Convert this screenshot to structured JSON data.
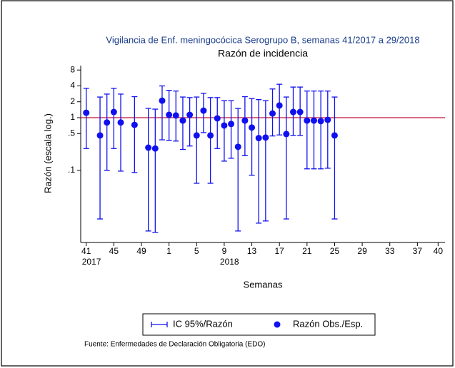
{
  "chart_data": {
    "type": "errorbar",
    "title": "Vigilancia de Enf. meningocócica Serogrupo B, semanas 41/2017 a 29/2018",
    "subtitle": "Razón de incidencia",
    "y_label": "Razón (escala log.)",
    "x_label": "Semanas",
    "note": "Fuente: Enfermedades de Declaración Obligatoria (EDO)",
    "y_scale": "log",
    "legend_position": "bottom",
    "x": [
      41,
      43,
      44,
      45,
      46,
      48,
      50,
      51,
      52,
      53,
      54,
      55,
      56,
      57,
      58,
      59,
      60,
      61,
      62,
      63,
      64,
      65,
      66,
      67,
      68,
      69,
      70,
      71,
      72,
      73,
      74,
      75,
      76,
      77
    ],
    "series": [
      {
        "name": "Razón Obs./Esp.",
        "color": "#1010f0",
        "values": [
          1.24,
          0.46,
          0.81,
          1.28,
          0.81,
          0.73,
          0.27,
          0.26,
          2.1,
          1.13,
          1.1,
          0.88,
          1.13,
          0.46,
          1.36,
          0.46,
          0.97,
          0.71,
          0.76,
          0.28,
          0.88,
          0.65,
          0.41,
          0.42,
          1.2,
          1.7,
          0.49,
          1.28,
          1.28,
          0.88,
          0.88,
          0.86,
          0.91,
          0.46
        ]
      }
    ],
    "ci": {
      "name": "IC 95%/Razón",
      "color": "#1010f0",
      "lower": [
        0.26,
        0.012,
        0.1,
        0.26,
        0.097,
        0.091,
        0.0071,
        0.0067,
        0.38,
        0.37,
        0.36,
        0.25,
        0.29,
        0.057,
        0.52,
        0.057,
        0.26,
        0.15,
        0.17,
        0.0071,
        0.19,
        0.081,
        0.01,
        0.011,
        0.45,
        0.47,
        0.012,
        0.46,
        0.46,
        0.107,
        0.107,
        0.107,
        0.11,
        0.012
      ],
      "upper": [
        3.6,
        2.46,
        2.8,
        3.6,
        2.8,
        2.5,
        1.5,
        1.45,
        4,
        3.3,
        3.2,
        2.46,
        2.4,
        2.46,
        2.9,
        2.4,
        2.4,
        2.1,
        2.1,
        1.5,
        2.5,
        2.3,
        2.2,
        2.1,
        3.5,
        4.3,
        2.46,
        3.8,
        3.8,
        3.2,
        3.2,
        3.2,
        3.2,
        2.46
      ]
    },
    "refline": {
      "value": 1,
      "color": "#c0143c"
    },
    "xlim": [
      40.2,
      93.0
    ],
    "xticks": [
      41,
      45,
      49,
      {
        "value": 53,
        "label": "1"
      },
      {
        "value": 57,
        "label": "5"
      },
      {
        "value": 61,
        "label": "9"
      },
      {
        "value": 65,
        "label": "13"
      },
      {
        "value": 69,
        "label": "17"
      },
      {
        "value": 73,
        "label": "21"
      },
      {
        "value": 77,
        "label": "25"
      },
      {
        "value": 81,
        "label": "29"
      },
      {
        "value": 85,
        "label": "33"
      },
      {
        "value": 89,
        "label": "37"
      },
      {
        "value": 92,
        "label": "40"
      }
    ],
    "xticks_sub": [
      {
        "value": 41,
        "label": "2017"
      },
      {
        "value": 61,
        "label": "2018"
      }
    ],
    "ylim": [
      0.0043,
      9.7
    ],
    "yticks": [
      {
        "value": 0.1,
        "label": ".1"
      },
      {
        "value": 0.5,
        "label": ".5"
      },
      1,
      2,
      4,
      8
    ]
  }
}
